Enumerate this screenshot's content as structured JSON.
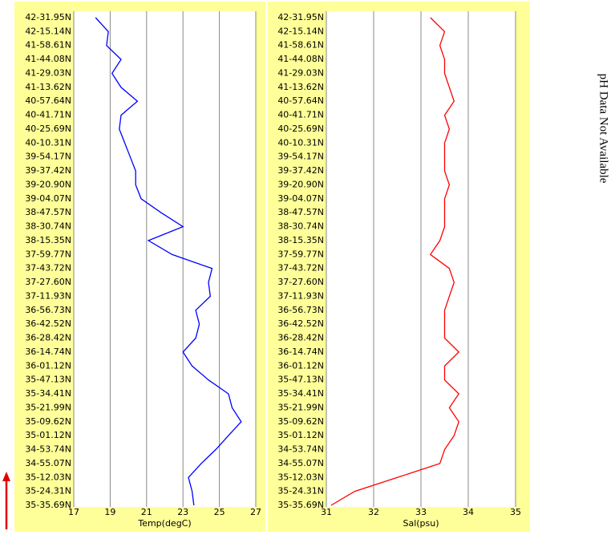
{
  "chart_data": [
    {
      "type": "line",
      "xlabel": "Temp(degC)",
      "color": "#0000ff",
      "categories": [
        "42-31.95N",
        "42-15.14N",
        "41-58.61N",
        "41-44.08N",
        "41-29.03N",
        "41-13.62N",
        "40-57.64N",
        "40-41.71N",
        "40-25.69N",
        "40-10.31N",
        "39-54.17N",
        "39-37.42N",
        "39-20.90N",
        "39-04.07N",
        "38-47.57N",
        "38-30.74N",
        "38-15.35N",
        "37-59.77N",
        "37-43.72N",
        "37-27.60N",
        "37-11.93N",
        "36-56.73N",
        "36-42.52N",
        "36-28.42N",
        "36-14.74N",
        "36-01.12N",
        "35-47.13N",
        "35-34.41N",
        "35-21.99N",
        "35-09.62N",
        "35-01.12N",
        "34-53.74N",
        "34-55.07N",
        "35-12.03N",
        "35-24.31N",
        "35-35.69N"
      ],
      "values": [
        18.2,
        18.9,
        18.8,
        19.6,
        19.1,
        19.6,
        20.5,
        19.6,
        19.5,
        19.8,
        20.1,
        20.4,
        20.4,
        20.7,
        21.8,
        23.0,
        21.1,
        22.4,
        24.6,
        24.4,
        24.5,
        23.7,
        23.9,
        23.7,
        23.0,
        23.5,
        24.4,
        25.5,
        25.7,
        26.2,
        25.5,
        24.8,
        24.0,
        23.3,
        23.5,
        23.6
      ],
      "xlim": [
        17,
        27
      ],
      "xticks": [
        17,
        19,
        21,
        23,
        25,
        27
      ],
      "grid": true
    },
    {
      "type": "line",
      "xlabel": "Sal(psu)",
      "color": "#ff0000",
      "categories": [
        "42-31.95N",
        "42-15.14N",
        "41-58.61N",
        "41-44.08N",
        "41-29.03N",
        "41-13.62N",
        "40-57.64N",
        "40-41.71N",
        "40-25.69N",
        "40-10.31N",
        "39-54.17N",
        "39-37.42N",
        "39-20.90N",
        "39-04.07N",
        "38-47.57N",
        "38-30.74N",
        "38-15.35N",
        "37-59.77N",
        "37-43.72N",
        "37-27.60N",
        "37-11.93N",
        "36-56.73N",
        "36-42.52N",
        "36-28.42N",
        "36-14.74N",
        "36-01.12N",
        "35-47.13N",
        "35-34.41N",
        "35-21.99N",
        "35-09.62N",
        "35-01.12N",
        "34-53.74N",
        "34-55.07N",
        "35-12.03N",
        "35-24.31N",
        "35-35.69N"
      ],
      "values": [
        33.2,
        33.5,
        33.4,
        33.5,
        33.5,
        33.6,
        33.7,
        33.5,
        33.6,
        33.5,
        33.5,
        33.5,
        33.6,
        33.5,
        33.5,
        33.5,
        33.4,
        33.2,
        33.6,
        33.7,
        33.6,
        33.5,
        33.5,
        33.5,
        33.8,
        33.5,
        33.5,
        33.8,
        33.6,
        33.8,
        33.7,
        33.5,
        33.4,
        32.5,
        31.6,
        31.1
      ],
      "xlim": [
        31,
        35
      ],
      "xticks": [
        31,
        32,
        33,
        34,
        35
      ],
      "grid": true
    }
  ],
  "note": "pH Data Not Available"
}
